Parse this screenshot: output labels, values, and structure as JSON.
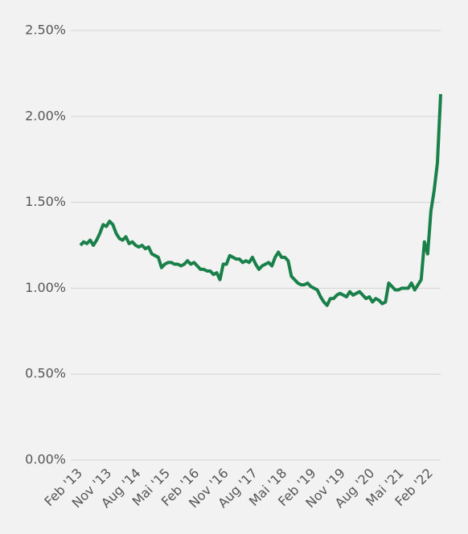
{
  "chart_data": {
    "type": "line",
    "color": "#1a8049",
    "grid": true,
    "ylim": [
      0,
      2.5
    ],
    "yticks": [
      {
        "value": 0,
        "label": "0.00%"
      },
      {
        "value": 0.5,
        "label": "0.50%"
      },
      {
        "value": 1,
        "label": "1.00%"
      },
      {
        "value": 1.5,
        "label": "1.50%"
      },
      {
        "value": 2,
        "label": "2.00%"
      },
      {
        "value": 2.5,
        "label": "2.50%"
      }
    ],
    "categories": [
      "Feb '13",
      null,
      null,
      null,
      null,
      null,
      null,
      null,
      null,
      "Nov '13",
      null,
      null,
      null,
      null,
      null,
      null,
      null,
      null,
      "Aug '14",
      null,
      null,
      null,
      null,
      null,
      null,
      null,
      null,
      "Mai '15",
      null,
      null,
      null,
      null,
      null,
      null,
      null,
      null,
      "Feb '16",
      null,
      null,
      null,
      null,
      null,
      null,
      null,
      null,
      "Nov '16",
      null,
      null,
      null,
      null,
      null,
      null,
      null,
      null,
      "Aug '17",
      null,
      null,
      null,
      null,
      null,
      null,
      null,
      null,
      "Mai '18",
      null,
      null,
      null,
      null,
      null,
      null,
      null,
      null,
      "Feb '19",
      null,
      null,
      null,
      null,
      null,
      null,
      null,
      null,
      "Nov '19",
      null,
      null,
      null,
      null,
      null,
      null,
      null,
      null,
      "Aug '20",
      null,
      null,
      null,
      null,
      null,
      null,
      null,
      null,
      "Mai '21",
      null,
      null,
      null,
      null,
      null,
      null,
      null,
      null,
      "Feb '22",
      null,
      null,
      null
    ],
    "values": [
      1.25,
      1.27,
      1.26,
      1.28,
      1.25,
      1.28,
      1.32,
      1.37,
      1.36,
      1.39,
      1.37,
      1.32,
      1.29,
      1.28,
      1.3,
      1.26,
      1.27,
      1.25,
      1.24,
      1.25,
      1.23,
      1.24,
      1.2,
      1.19,
      1.18,
      1.12,
      1.14,
      1.15,
      1.15,
      1.14,
      1.14,
      1.13,
      1.14,
      1.16,
      1.14,
      1.15,
      1.13,
      1.11,
      1.11,
      1.1,
      1.1,
      1.08,
      1.09,
      1.05,
      1.14,
      1.14,
      1.19,
      1.18,
      1.17,
      1.17,
      1.15,
      1.16,
      1.15,
      1.18,
      1.14,
      1.11,
      1.13,
      1.14,
      1.15,
      1.13,
      1.18,
      1.21,
      1.18,
      1.18,
      1.16,
      1.07,
      1.05,
      1.03,
      1.02,
      1.02,
      1.03,
      1.01,
      1.0,
      0.99,
      0.95,
      0.92,
      0.9,
      0.94,
      0.94,
      0.96,
      0.97,
      0.96,
      0.95,
      0.98,
      0.96,
      0.97,
      0.98,
      0.96,
      0.94,
      0.95,
      0.92,
      0.94,
      0.93,
      0.91,
      0.92,
      1.03,
      1.01,
      0.99,
      0.99,
      1.0,
      1.0,
      1.0,
      1.03,
      0.99,
      1.02,
      1.05,
      1.27,
      1.2,
      1.45,
      1.57,
      1.73,
      2.13
    ]
  }
}
